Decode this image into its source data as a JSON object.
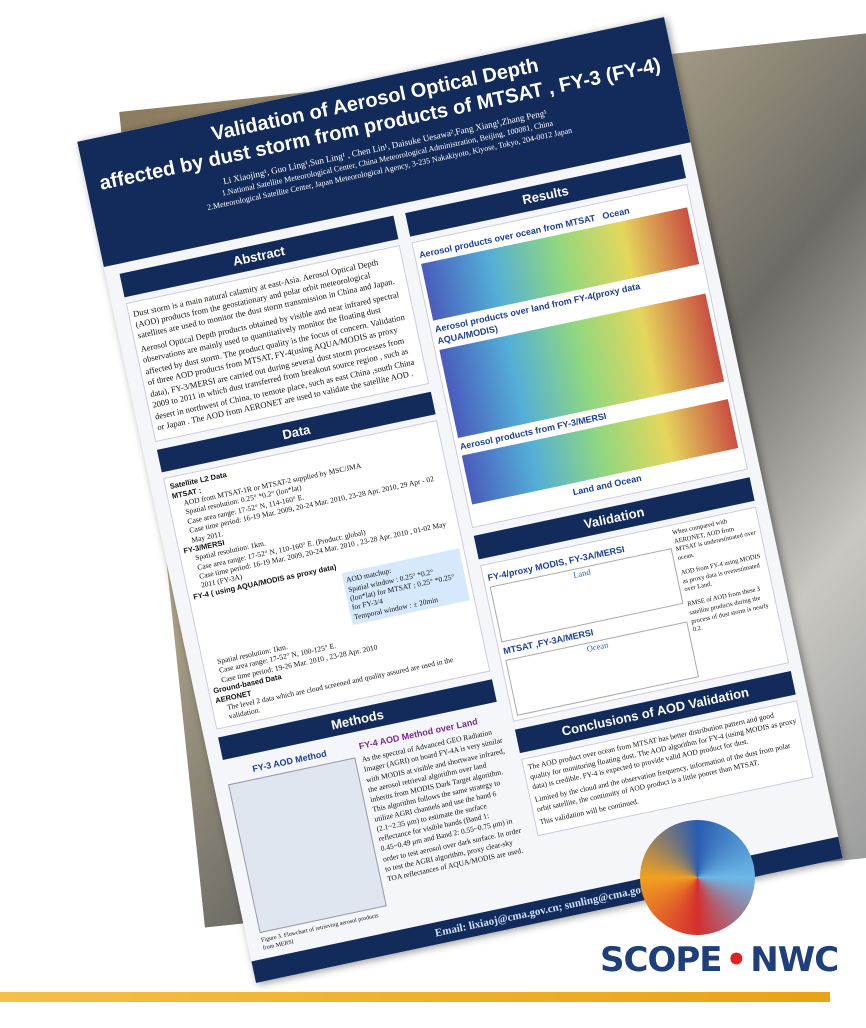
{
  "poster": {
    "title_line1": "Validation of Aerosol Optical Depth",
    "title_line2": "affected by dust storm from products of MTSAT , FY-3 (FY-4)",
    "authors": "Li Xiaojing¹, Guo Ling¹,Sun Ling¹ , Chen Lin¹, Daisuke Uesawa²,Fang Xiang¹,Zhang Peng¹",
    "affiliations": [
      "1.National Satellite Meteorological Center, China Meteorological Administration, Beijing, 100081, China",
      "2.Meteorological Satellite Center, Japan Meteorological Agency, 3-235 Nakakiyoto, Kiyose, Tokyo, 204-0012 Japan"
    ],
    "abstract": {
      "heading": "Abstract",
      "paragraphs": [
        "Dust storm is a main natural calamity at east-Asia. Aerosol Optical Depth (AOD) products from the geostationary and polar orbit meteorological satellites are used to monitor the dust storm transmission in China and Japan.",
        "Aerosol Optical Depth products obtained by visible and near infrared spectral observations are mainly used to quantitatively monitor the floating dust affected by dust storm. The product quality is the focus of concern. Validation of three AOD products from MTSAT, FY-4(using AQUA/MODIS as proxy data), FY-3/MERSI are carried out during several dust storm processes from 2009 to 2011 in which dust transferred from breakout source region , such as desert in northwest of China, to remote place, such as east China ,south China or Japan . The AOD from AERONET are used to validate the satellite AOD ."
      ]
    },
    "data": {
      "heading": "Data",
      "items": [
        "Satellite L2 Data",
        "MTSAT :",
        "AOD from MTSAT-1R or MTSAT-2 supplied by MSC/JMA",
        "Spatial resolution: 0.25° *0.2° (lon*lat)",
        "Case area range: 17-52° N, 114-160° E.",
        "Case time period: 16-19 Mar. 2009, 20-24 Mar. 2010, 23-28 Apr. 2010, 29 Apr - 02 May 2011.",
        "FY-3/MERSI",
        "Spatial resolution: 1km.",
        "Case area range: 17-52° N, 110-160° E. (Product: global)",
        "Case time period: 16-19 Mar. 2009, 20-24 Mar. 2010 , 23-28 Apr. 2010 , 01-02 May 2011 (FY-3A)",
        "FY-4 ( using AQUA/MODIS as proxy data)",
        "Spatial resolution: 1km.",
        "Case area range: 17-52° N, 100-125° E.",
        "Case time period: 19-26 Mar. 2010 , 23-28 Apr. 2010",
        "Ground-based Data",
        "AERONET",
        "The level 2 data which are cloud screened and quality assured are used in the validation."
      ],
      "matchup": [
        "AOD matchup:",
        "Spatial window : 0.25° *0.2° (lon*lat) for MTSAT ; 0.25° *0.25° for FY-3/4",
        "Temporal window : ± 20min"
      ]
    },
    "methods": {
      "heading": "Methods",
      "fy3": "FY-3 AOD Method",
      "fy4": "FY-4 AOD Method over Land",
      "fy4_text": "As the spectral of Advanced GEO Radiation Imager (AGRI) on board FY-4A is very similar with MODIS at visible and shortwave infrared, the aerosol retrieval algorithm over land inherits from MODIS Dark Target algorithm. This algorithm follows the same strategy to utilize AGRI channels and use the band 6 (2.1~2.35 μm) to estimate the surface reflectance for visible bands (Band 1: 0.45~0.49 μm and Band 2: 0.55~0.75 μm) in order to test aerosol over dark surface. In order to test the AGRI algorithm, proxy clear-sky TOA reflectances of AQUA/MODIS are used.",
      "caption": "Figure 3. Flowchart of retrieving aerosol products from MERSI"
    },
    "results": {
      "heading": "Results",
      "sub1": "Aerosol products over ocean from MTSAT",
      "sub2": "Aerosol products over land from FY-4(proxy data AQUA/MODIS)",
      "sub3": "Aerosol products from FY-3/MERSI",
      "label_ocean": "Ocean",
      "label_land_ocean": "Land and Ocean"
    },
    "validation": {
      "heading": "Validation",
      "left": "FY-4/proxy MODIS, FY-3A/MERSI",
      "right": "MTSAT ,FY-3A/MERSI",
      "land": "Land",
      "ocean": "Ocean",
      "notes": [
        "When compared with AERONET, AOD from MTSAT is underestimated over ocean.",
        "AOD from FY-4 using MODIS as proxy data is overestimated over Land.",
        "RMSE of AOD from these 3 satellite products during the process of dust storm is nearly 0.2."
      ]
    },
    "conclusions": {
      "heading": "Conclusions of AOD Validation",
      "items": [
        "The AOD product over ocean from MTSAT has better distribution pattern and good quality for monitoring floating dust. The AOD algorithm for FY-4 (using MODIS as proxy data) is credible. FY-4 is expected to provide valid AOD product for dust.",
        "Limited by the cloud and the observation frequency, information of the dust from polar orbit satellite, the continuity of AOD product is a little poorer than MTSAT.",
        "This validation will be continued."
      ]
    },
    "email": "Email: lixiaoj@cma.gov.cn; sunling@cma.gov.cn"
  },
  "logo": {
    "left": "SCOPE",
    "right": "NWC"
  }
}
